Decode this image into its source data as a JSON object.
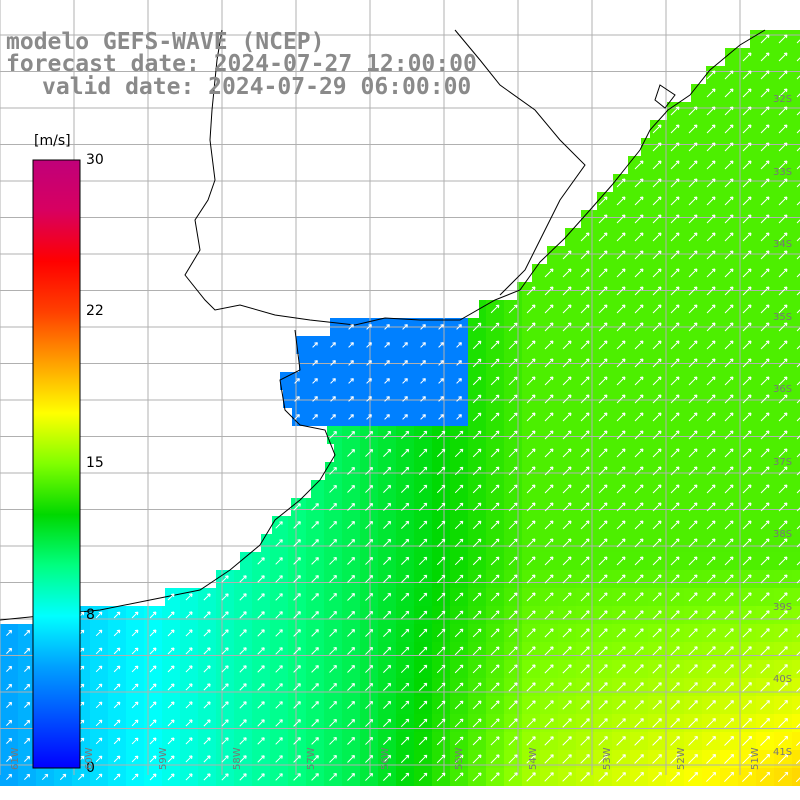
{
  "title": {
    "line1": "modelo GEFS-WAVE (NCEP)",
    "line2": "forecast date: 2024-07-27 12:00:00",
    "line3": "valid date: 2024-07-29 06:00:00"
  },
  "colorbar": {
    "unit": "[m/s]",
    "ticks": [
      "30",
      "22",
      "15",
      "8",
      "0"
    ],
    "tick_values": [
      30,
      22,
      15,
      8,
      0
    ],
    "min": 0,
    "max": 30,
    "colors": [
      "#0000ff",
      "#0050ff",
      "#00a0ff",
      "#00ffff",
      "#00ff80",
      "#00d800",
      "#80ff00",
      "#ffff00",
      "#ffa000",
      "#ff4000",
      "#ff0000",
      "#d80060",
      "#c0007a"
    ]
  },
  "lat_labels": [
    "32S",
    "33S",
    "34S",
    "35S",
    "36S",
    "37S",
    "38S",
    "39S",
    "40S",
    "41S"
  ],
  "lon_labels": [
    "61W",
    "60W",
    "59W",
    "58W",
    "57W",
    "56W",
    "55W",
    "54W",
    "53W",
    "52W",
    "51W"
  ],
  "field": {
    "name": "wind speed",
    "units": "m/s",
    "west_value": 5,
    "east_value": 14,
    "south_bonus": 5,
    "estuary_value": 4
  },
  "colors": {
    "land": "#ffffff",
    "coast": "#000000",
    "grid": "#b0b0b0",
    "arrow": "#ffffff",
    "title": "#8a8a8a"
  }
}
